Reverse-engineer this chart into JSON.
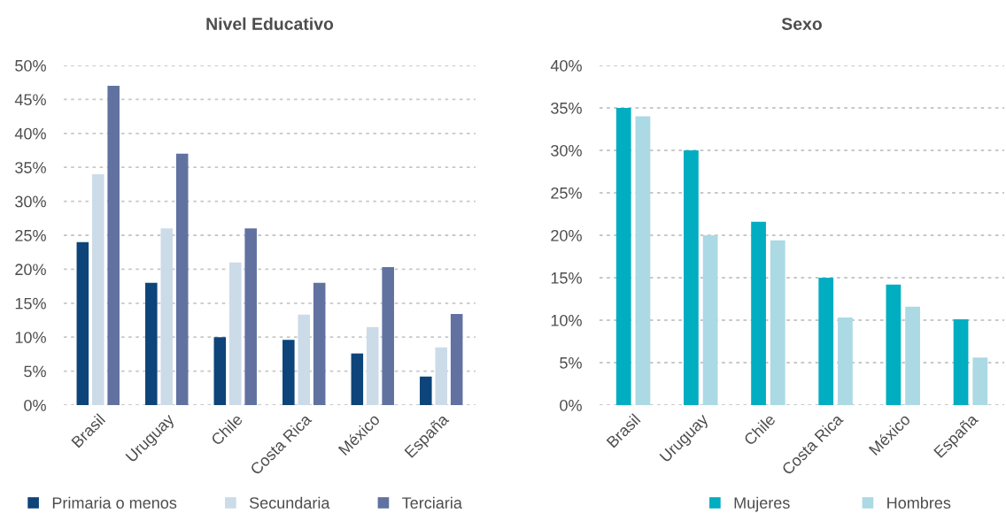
{
  "chart_data": [
    {
      "type": "bar",
      "title": "Nivel Educativo",
      "categories": [
        "Brasil",
        "Uruguay",
        "Chile",
        "Costa Rica",
        "México",
        "España"
      ],
      "series": [
        {
          "name": "Primaria o menos",
          "color": "#0d4479",
          "values": [
            24,
            18,
            10,
            9.6,
            7.6,
            4.2
          ]
        },
        {
          "name": "Secundaria",
          "color": "#ccdbe8",
          "values": [
            34,
            26,
            21,
            13.3,
            11.5,
            8.5
          ]
        },
        {
          "name": "Terciaria",
          "color": "#6172a1",
          "values": [
            47,
            37,
            26,
            18,
            20.3,
            13.4
          ]
        }
      ],
      "ylim": [
        0,
        50
      ],
      "yticks": [
        {
          "value": 0,
          "label": "0%"
        },
        {
          "value": 5,
          "label": "5%"
        },
        {
          "value": 10,
          "label": "10%"
        },
        {
          "value": 15,
          "label": "15%"
        },
        {
          "value": 20,
          "label": "20%"
        },
        {
          "value": 25,
          "label": "25%"
        },
        {
          "value": 30,
          "label": "30%"
        },
        {
          "value": 35,
          "label": "35%"
        },
        {
          "value": 40,
          "label": "40%"
        },
        {
          "value": 45,
          "label": "45%"
        },
        {
          "value": 50,
          "label": "50%"
        }
      ],
      "grid": "y",
      "legend": "bottom"
    },
    {
      "type": "bar",
      "title": "Sexo",
      "categories": [
        "Brasil",
        "Uruguay",
        "Chile",
        "Costa Rica",
        "México",
        "España"
      ],
      "series": [
        {
          "name": "Mujeres",
          "color": "#00adc1",
          "values": [
            35,
            30,
            21.6,
            15,
            14.2,
            10.1
          ]
        },
        {
          "name": "Hombres",
          "color": "#abd9e4",
          "values": [
            34,
            20,
            19.4,
            10.3,
            11.6,
            5.6
          ]
        }
      ],
      "ylim": [
        0,
        40
      ],
      "yticks": [
        {
          "value": 0,
          "label": "0%"
        },
        {
          "value": 5,
          "label": "5%"
        },
        {
          "value": 10,
          "label": "10%"
        },
        {
          "value": 15,
          "label": "15%"
        },
        {
          "value": 20,
          "label": "20%"
        },
        {
          "value": 25,
          "label": "25%"
        },
        {
          "value": 30,
          "label": "30%"
        },
        {
          "value": 35,
          "label": "35%"
        },
        {
          "value": 40,
          "label": "40%"
        }
      ],
      "grid": "y",
      "legend": "bottom"
    }
  ]
}
